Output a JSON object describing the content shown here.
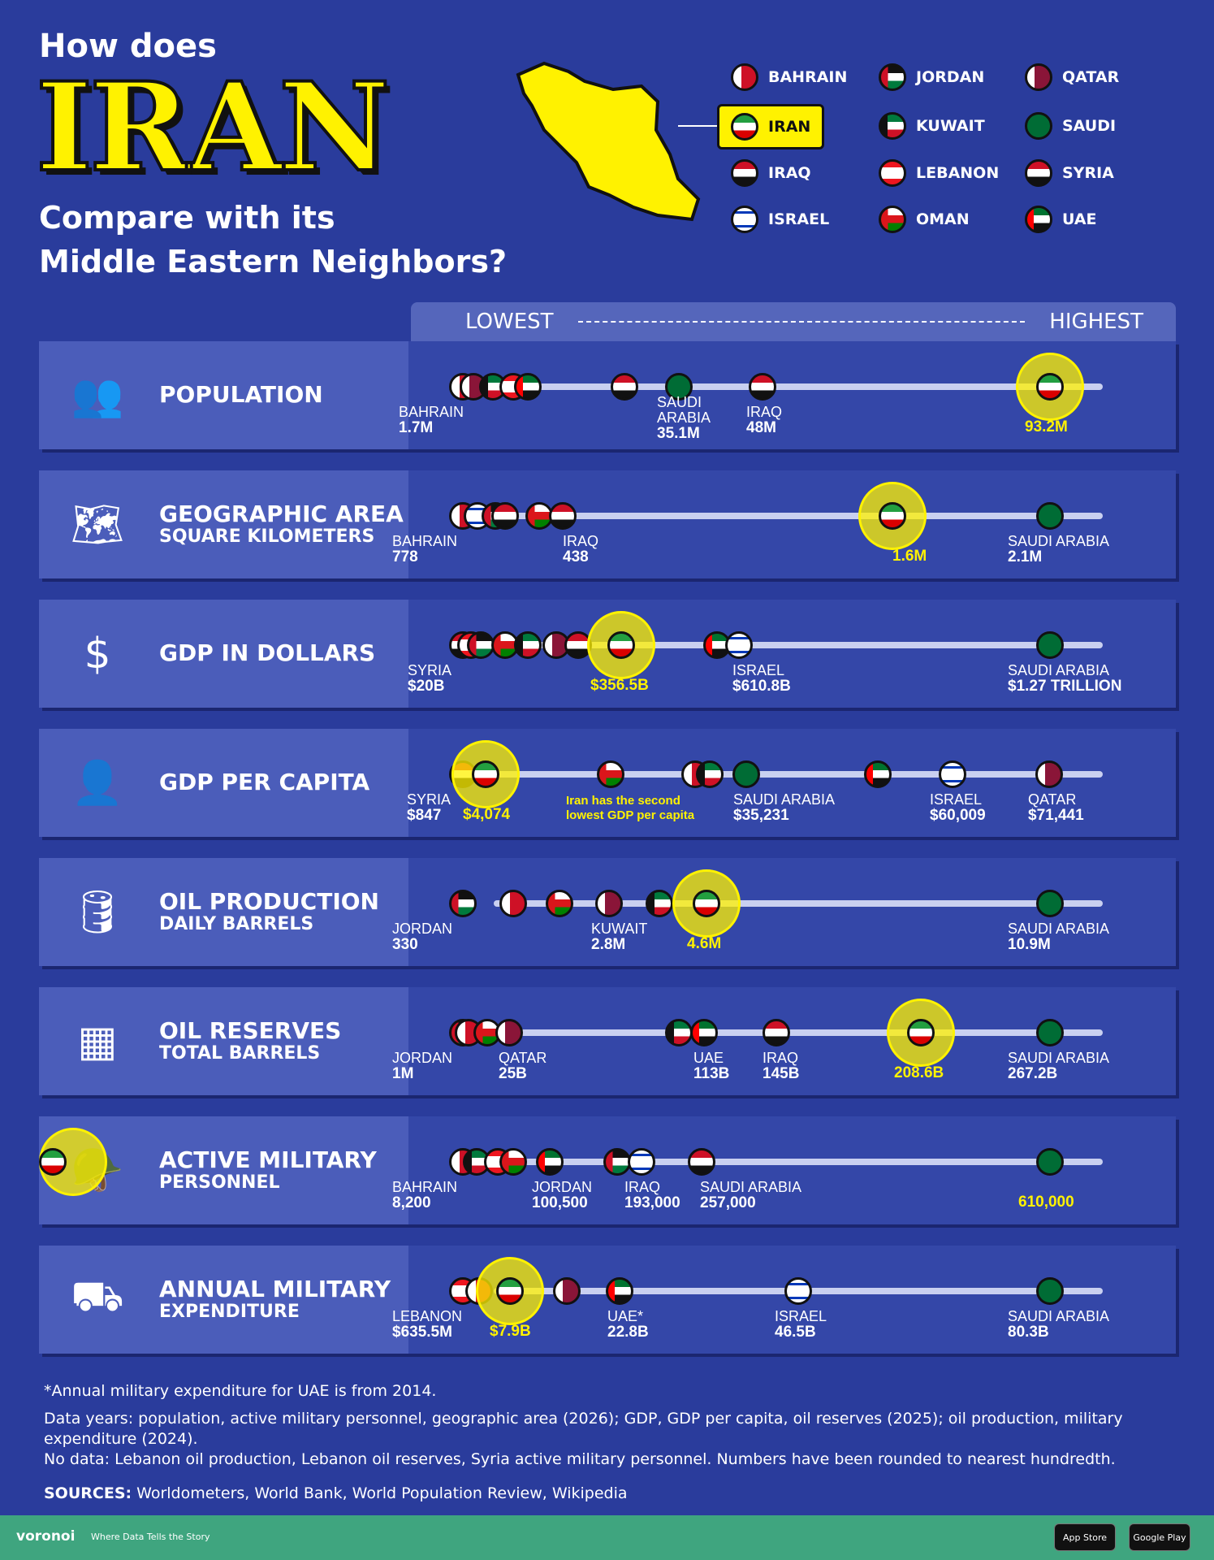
{
  "title": {
    "line1": "How does",
    "big": "IRAN",
    "line2": "Compare with its",
    "line3": "Middle Eastern Neighbors?"
  },
  "legend": [
    {
      "key": "bahrain",
      "label": "BAHRAIN"
    },
    {
      "key": "jordan",
      "label": "JORDAN"
    },
    {
      "key": "qatar",
      "label": "QATAR"
    },
    {
      "key": "iran",
      "label": "IRAN"
    },
    {
      "key": "kuwait",
      "label": "KUWAIT"
    },
    {
      "key": "saudi",
      "label": "SAUDI"
    },
    {
      "key": "iraq",
      "label": "IRAQ"
    },
    {
      "key": "lebanon",
      "label": "LEBANON"
    },
    {
      "key": "syria",
      "label": "SYRIA"
    },
    {
      "key": "israel",
      "label": "ISRAEL"
    },
    {
      "key": "oman",
      "label": "OMAN"
    },
    {
      "key": "uae",
      "label": "UAE"
    }
  ],
  "scale": {
    "low": "LOWEST",
    "high": "HIGHEST"
  },
  "chart_data": {
    "type": "table",
    "rows": [
      {
        "metric": "POPULATION",
        "sub": "",
        "markers": [
          "bahrain",
          "qatar",
          "kuwait",
          "lebanon",
          "uae",
          "syria",
          "saudi",
          "iraq",
          "iran"
        ],
        "labels": [
          {
            "name": "BAHRAIN",
            "value": "1.7M"
          },
          {
            "name": "SAUDI ARABIA",
            "value": "35.1M"
          },
          {
            "name": "IRAQ",
            "value": "48M"
          },
          {
            "name": "",
            "value": "93.2M",
            "iran": true
          }
        ]
      },
      {
        "metric": "GEOGRAPHIC AREA",
        "sub": "SQUARE KILOMETERS",
        "markers": [
          "bahrain",
          "israel",
          "jordan",
          "syria",
          "oman",
          "iraq",
          "iran",
          "saudi"
        ],
        "labels": [
          {
            "name": "BAHRAIN",
            "value": "778"
          },
          {
            "name": "IRAQ",
            "value": "438"
          },
          {
            "name": "",
            "value": "1.6M",
            "iran": true
          },
          {
            "name": "SAUDI ARABIA",
            "value": "2.1M"
          }
        ]
      },
      {
        "metric": "GDP IN DOLLARS",
        "sub": "",
        "markers": [
          "syria",
          "lebanon",
          "jordan",
          "oman",
          "kuwait",
          "qatar",
          "iraq",
          "iran",
          "uae",
          "israel",
          "saudi"
        ],
        "labels": [
          {
            "name": "SYRIA",
            "value": "$20B"
          },
          {
            "name": "",
            "value": "$356.5B",
            "iran": true
          },
          {
            "name": "ISRAEL",
            "value": "$610.8B"
          },
          {
            "name": "SAUDI ARABIA",
            "value": "$1.27 TRILLION"
          }
        ]
      },
      {
        "metric": "GDP PER CAPITA",
        "sub": "",
        "markers": [
          "syria",
          "iran",
          "oman",
          "bahrain",
          "kuwait",
          "saudi",
          "uae",
          "israel",
          "qatar"
        ],
        "labels": [
          {
            "name": "SYRIA",
            "value": "$847"
          },
          {
            "name": "",
            "value": "$4,074",
            "iran": true
          },
          {
            "name": "SAUDI ARABIA",
            "value": "$35,231"
          },
          {
            "name": "ISRAEL",
            "value": "$60,009"
          },
          {
            "name": "QATAR",
            "value": "$71,441"
          }
        ],
        "note": "Iran has the second lowest GDP per capita"
      },
      {
        "metric": "OIL PRODUCTION",
        "sub": "DAILY BARRELS",
        "markers": [
          "jordan",
          "bahrain",
          "oman",
          "qatar",
          "kuwait",
          "iran",
          "saudi"
        ],
        "labels": [
          {
            "name": "JORDAN",
            "value": "330"
          },
          {
            "name": "KUWAIT",
            "value": "2.8M"
          },
          {
            "name": "",
            "value": "4.6M",
            "iran": true
          },
          {
            "name": "SAUDI ARABIA",
            "value": "10.9M"
          }
        ]
      },
      {
        "metric": "OIL RESERVES",
        "sub": "TOTAL BARRELS",
        "markers": [
          "jordan",
          "bahrain",
          "oman",
          "qatar",
          "kuwait",
          "uae",
          "iraq",
          "iran",
          "saudi"
        ],
        "labels": [
          {
            "name": "JORDAN",
            "value": "1M"
          },
          {
            "name": "QATAR",
            "value": "25B"
          },
          {
            "name": "UAE",
            "value": "113B"
          },
          {
            "name": "IRAQ",
            "value": "145B"
          },
          {
            "name": "",
            "value": "208.6B",
            "iran": true
          },
          {
            "name": "SAUDI ARABIA",
            "value": "267.2B"
          }
        ]
      },
      {
        "metric": "ACTIVE MILITARY",
        "sub": "PERSONNEL",
        "markers": [
          "bahrain",
          "kuwait",
          "lebanon",
          "oman",
          "uae",
          "jordan",
          "israel",
          "iraq",
          "saudi",
          "iran"
        ],
        "labels": [
          {
            "name": "BAHRAIN",
            "value": "8,200"
          },
          {
            "name": "JORDAN",
            "value": "100,500"
          },
          {
            "name": "IRAQ",
            "value": "193,000"
          },
          {
            "name": "SAUDI ARABIA",
            "value": "257,000"
          },
          {
            "name": "",
            "value": "610,000",
            "iran": true
          }
        ]
      },
      {
        "metric": "ANNUAL MILITARY",
        "sub": "EXPENDITURE",
        "markers": [
          "lebanon",
          "bahrain",
          "iran",
          "qatar",
          "uae",
          "israel",
          "saudi"
        ],
        "labels": [
          {
            "name": "LEBANON",
            "value": "$635.5M"
          },
          {
            "name": "",
            "value": "$7.9B",
            "iran": true
          },
          {
            "name": "UAE*",
            "value": "22.8B"
          },
          {
            "name": "ISRAEL",
            "value": "46.5B"
          },
          {
            "name": "SAUDI ARABIA",
            "value": "80.3B"
          }
        ]
      }
    ]
  },
  "footnotes": {
    "asterisk": "*Annual military expenditure for UAE is from 2014.",
    "years": "Data years: population, active military personnel, geographic area (2026); GDP, GDP per capita, oil reserves (2025); oil production, military expenditure (2024).",
    "nodata": "No data: Lebanon oil production, Lebanon oil reserves, Syria active military personnel. Numbers have been rounded to nearest hundredth.",
    "sources_label": "SOURCES:",
    "sources": "Worldometers, World Bank, World Population Review, Wikipedia"
  },
  "footer": {
    "brand": "voronoi",
    "tagline": "Where Data Tells the Story",
    "app_store": "App Store",
    "google_play": "Google Play"
  },
  "colors": {
    "background": "#2a3c9c",
    "highlight": "#fff200",
    "footer": "#3fa57f"
  }
}
